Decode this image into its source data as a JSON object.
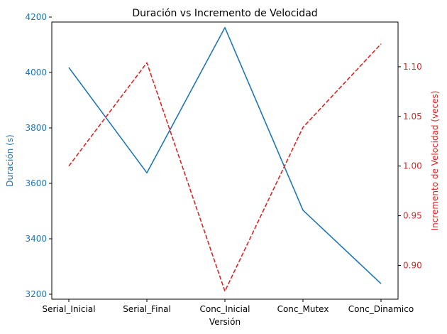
{
  "chart_data": {
    "type": "line",
    "title": "Duración vs Incremento de Velocidad",
    "xlabel": "Versión",
    "categories": [
      "Serial_Inicial",
      "Serial_Final",
      "Conc_Inicial",
      "Conc_Mutex",
      "Conc_Dinamico"
    ],
    "grid": false,
    "y_left": {
      "label": "Duración (s)",
      "color": "#1f77b4",
      "ylim": [
        3200,
        4200
      ],
      "ticks": [
        3200,
        3400,
        3600,
        3800,
        4000,
        4200
      ]
    },
    "y_right": {
      "label": "Incremento de Velocidad (veces)",
      "color": "#d62728",
      "ylim": [
        0.866,
        1.145
      ],
      "ticks": [
        0.9,
        0.95,
        1.0,
        1.05,
        1.1
      ]
    },
    "series": [
      {
        "axis": "left",
        "color": "#1f77b4",
        "style": "solid",
        "values": [
          4018,
          3638,
          4162,
          3503,
          3238
        ]
      },
      {
        "axis": "right",
        "color": "#d62728",
        "style": "dashed",
        "values": [
          1.0,
          1.104,
          0.874,
          1.039,
          1.123
        ]
      }
    ]
  }
}
